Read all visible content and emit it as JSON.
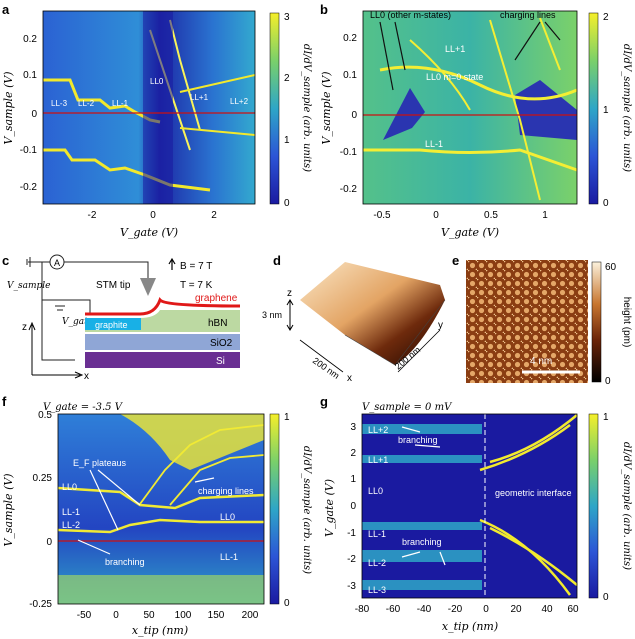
{
  "figure": {
    "panels": {
      "a": {
        "letter": "a",
        "xlabel": "V_gate (V)",
        "ylabel": "V_sample (V)",
        "xticks": [
          "-2",
          "0",
          "2"
        ],
        "yticks": [
          "0.2",
          "0.1",
          "0",
          "-0.1",
          "-0.2"
        ],
        "ll_labels": [
          "LL-3",
          "LL-2",
          "LL-1",
          "LL0",
          "LL+1",
          "LL+2"
        ],
        "colorbar": {
          "ticks": [
            "3",
            "2",
            "1",
            "0"
          ],
          "label": "dI/dV_sample (arb. units)"
        }
      },
      "b": {
        "letter": "b",
        "xlabel": "V_gate (V)",
        "ylabel": "V_sample (V)",
        "xticks": [
          "-0.5",
          "0",
          "0.5",
          "1"
        ],
        "yticks": [
          "0.2",
          "0.1",
          "0",
          "-0.1",
          "-0.2"
        ],
        "annotations": [
          "LL0 (other m-states)",
          "charging lines",
          "LL+1",
          "LL0 m=0 state",
          "LL-1"
        ],
        "colorbar": {
          "ticks": [
            "2",
            "1",
            "0"
          ],
          "label": "dI/dV_sample (arb. units)"
        }
      },
      "c": {
        "letter": "c",
        "labels": {
          "ammeter": "A",
          "v_sample": "V_sample",
          "v_gate": "V_gate",
          "stm_tip": "STM tip",
          "field": "B = 7 T",
          "temperature": "T = 7 K",
          "graphene": "graphene",
          "graphite": "graphite",
          "hbn": "hBN",
          "sio2": "SiO2",
          "si": "Si",
          "axis_z": "z",
          "axis_x": "x"
        }
      },
      "d": {
        "letter": "d",
        "labels": {
          "z": "z",
          "height": "3 nm",
          "y": "y",
          "x": "x",
          "side_left": "200 nm",
          "side_right": "200 nm"
        }
      },
      "e": {
        "letter": "e",
        "scalebar": "4 nm",
        "colorbar": {
          "ticks": [
            "60",
            "0"
          ],
          "label": "height (pm)"
        }
      },
      "f": {
        "letter": "f",
        "title": "V_gate = -3.5 V",
        "xlabel": "x_tip (nm)",
        "ylabel": "V_sample (V)",
        "xticks": [
          "-50",
          "0",
          "50",
          "100",
          "150",
          "200"
        ],
        "yticks": [
          "0.5",
          "0.25",
          "0",
          "-0.25"
        ],
        "annotations": [
          "E_F plateaus",
          "charging lines",
          "LL0",
          "LL-1",
          "LL-2",
          "branching",
          "LL0",
          "LL-1"
        ],
        "colorbar": {
          "ticks": [
            "1",
            "0"
          ],
          "label": "dI/dV_sample (arb. units)"
        }
      },
      "g": {
        "letter": "g",
        "title": "V_sample = 0 mV",
        "xlabel": "x_tip (nm)",
        "ylabel": "V_gate (V)",
        "xticks": [
          "-80",
          "-60",
          "-40",
          "-20",
          "0",
          "20",
          "40",
          "60"
        ],
        "yticks": [
          "3",
          "2",
          "1",
          "0",
          "-1",
          "-2",
          "-3"
        ],
        "annotations": [
          "LL+2",
          "branching",
          "LL+1",
          "LL0",
          "geometric interface",
          "LL-1",
          "branching",
          "LL-2",
          "LL-3"
        ],
        "colorbar": {
          "ticks": [
            "1",
            "0"
          ],
          "label": "dI/dV_sample (arb. units)"
        }
      }
    },
    "colors": {
      "map_dark": "#1a1aa0",
      "map_mid": "#2ea6c7",
      "map_bright": "#f3ec2a",
      "graphene": "#e01818",
      "hbn": "#bcd9a2",
      "graphite": "#18b0e6",
      "sio2": "#8fa6d6",
      "si": "#6a2f93",
      "zero_line": "#cc1010"
    }
  }
}
